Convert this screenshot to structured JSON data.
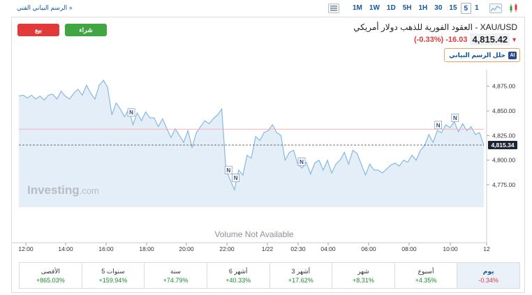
{
  "toolbar": {
    "full_chart_link": "الرسم البياني الفني »",
    "timeframes": [
      "1M",
      "1W",
      "1D",
      "5H",
      "1H",
      "30",
      "15",
      "5",
      "1"
    ],
    "active_timeframe": "5"
  },
  "trade": {
    "buy_label": "شراء",
    "sell_label": "بيع"
  },
  "instrument": {
    "title": "XAU/USD - العقود الفورية للذهب دولار أمريكي",
    "price": "4,815.42",
    "change": "-16.03",
    "change_pct": "(-0.33%)",
    "analyze_label": "حلل الرسم البياني",
    "ai_badge": "AI"
  },
  "chart_data": {
    "type": "area",
    "xlabel": "",
    "ylabel": "",
    "x_ticks": [
      "12:00",
      "14:00",
      "16:00",
      "18:00",
      "20:00",
      "22:00",
      "1/22",
      "02:30",
      "04:00",
      "06:00",
      "08:00",
      "10:00",
      "12"
    ],
    "y_ticks": [
      4875,
      4850,
      4825,
      4800,
      4775
    ],
    "y_tick_labels": [
      "4,875.00",
      "4,850.00",
      "4,825.00",
      "4,800.00",
      "4,775.00"
    ],
    "ylim": [
      4762,
      4893
    ],
    "current_price": 4815.34,
    "current_price_label": "4,815.34",
    "reference_price": 4831.45,
    "watermark": "Investing",
    "watermark_suffix": ".com",
    "volume_text": "Volume Not Available",
    "news_marker": "N",
    "news_markers_x_index": [
      26.6,
      49.6,
      51.3,
      66.9,
      99.2,
      103.2
    ],
    "series": [
      {
        "values": [
          4865,
          4866,
          4863,
          4866,
          4862,
          4865,
          4861,
          4866,
          4867,
          4862,
          4870,
          4865,
          4862,
          4868,
          4872,
          4866,
          4876,
          4868,
          4862,
          4876,
          4881,
          4874,
          4846,
          4858,
          4852,
          4844,
          4852,
          4836,
          4848,
          4840,
          4849,
          4843,
          4843,
          4834,
          4842,
          4832,
          4823,
          4832,
          4825,
          4818,
          4830,
          4813,
          4828,
          4834,
          4840,
          4837,
          4842,
          4846,
          4852,
          4790,
          4780,
          4770,
          4790,
          4785,
          4805,
          4802,
          4824,
          4820,
          4828,
          4830,
          4836,
          4828,
          4825,
          4800,
          4808,
          4810,
          4796,
          4792,
          4798,
          4786,
          4797,
          4800,
          4790,
          4800,
          4787,
          4796,
          4800,
          4808,
          4796,
          4810,
          4807,
          4796,
          4785,
          4796,
          4790,
          4790,
          4787,
          4791,
          4795,
          4797,
          4794,
          4800,
          4798,
          4805,
          4800,
          4810,
          4815,
          4826,
          4818,
          4830,
          4828,
          4836,
          4833,
          4839,
          4829,
          4837,
          4830,
          4834,
          4826,
          4828,
          4815
        ]
      }
    ]
  },
  "performance": [
    {
      "label": "الأقصى",
      "value": "+865.03%",
      "dir": "pos"
    },
    {
      "label": "5 سنوات",
      "value": "+159.94%",
      "dir": "pos"
    },
    {
      "label": "سنة",
      "value": "+74.79%",
      "dir": "pos"
    },
    {
      "label": "6 أشهر",
      "value": "+40.33%",
      "dir": "pos"
    },
    {
      "label": "3 أشهر",
      "value": "+17.62%",
      "dir": "pos"
    },
    {
      "label": "شهر",
      "value": "+8.31%",
      "dir": "pos"
    },
    {
      "label": "أسبوع",
      "value": "+4.35%",
      "dir": "pos"
    },
    {
      "label": "يوم",
      "value": "-0.34%",
      "dir": "neg"
    }
  ],
  "colors": {
    "line": "#7fb3e0",
    "fill": "#e3eef8",
    "reference": "#f2b2b2",
    "price_tag": "#1d2433",
    "buy": "#41a541",
    "sell": "#e03a3a"
  }
}
